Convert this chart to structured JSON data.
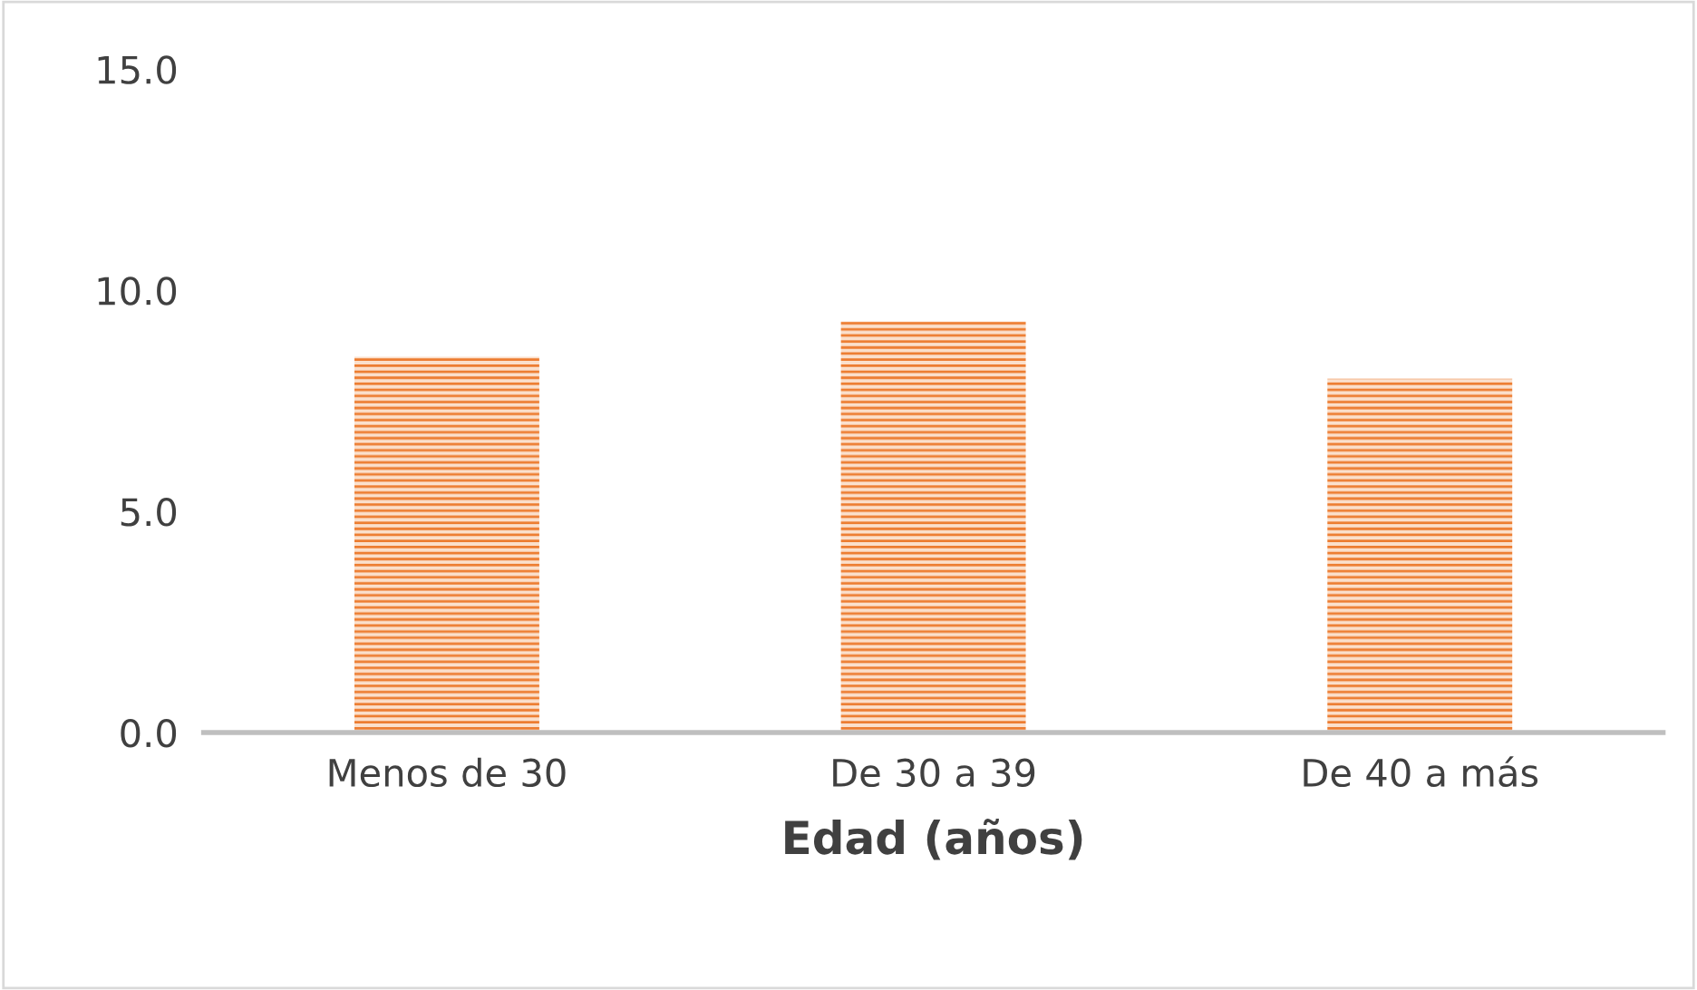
{
  "chart_data": {
    "type": "bar",
    "xlabel": "Edad (años)",
    "categories": [
      "Menos de 30",
      "De 30 a 39",
      "De 40 a más"
    ],
    "values": [
      8.5,
      9.3,
      8.0
    ],
    "color": "#ed7d31",
    "ylim": [
      0,
      15
    ],
    "yticks": [
      {
        "value": 0,
        "label": "0.0"
      },
      {
        "value": 5,
        "label": "5.0"
      },
      {
        "value": 10,
        "label": "10.0"
      },
      {
        "value": 15,
        "label": "15.0"
      }
    ],
    "grid": false
  }
}
